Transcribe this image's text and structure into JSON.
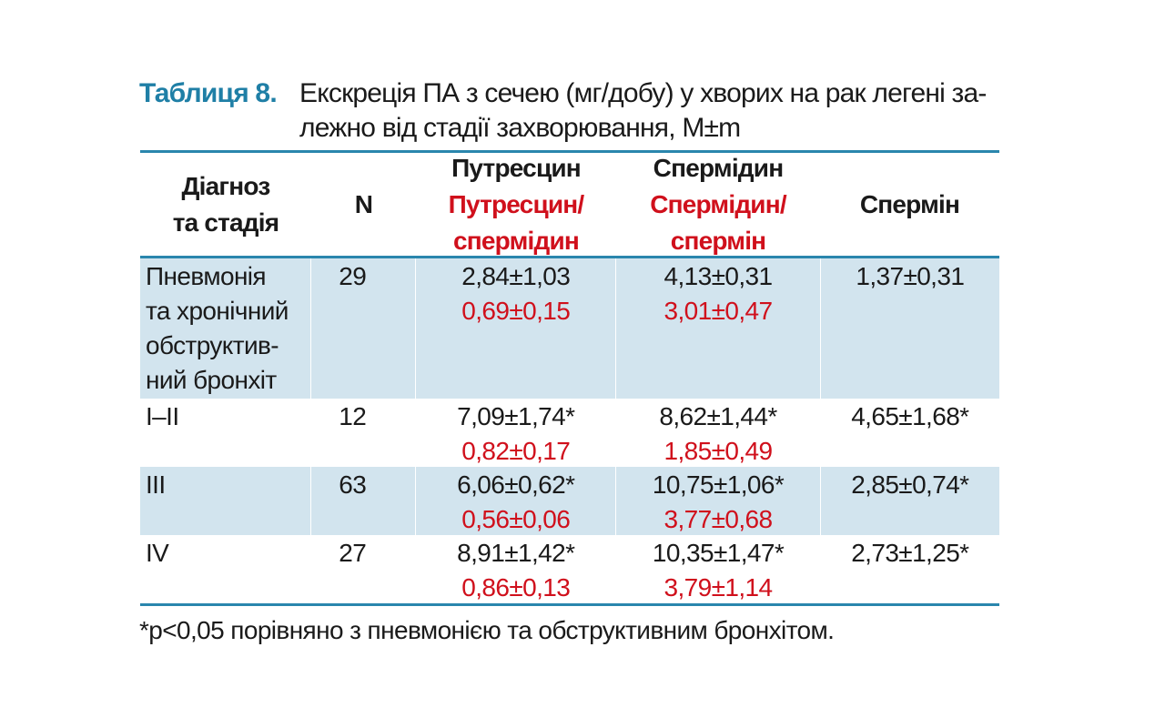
{
  "caption": {
    "label": "Таблиця 8.",
    "text": "Екскреція ПА з сечею (мг/добу) у хворих на рак легені за-\nлежно від стадії захворювання, M±m"
  },
  "table": {
    "headers": {
      "col1": "Діагноз\nта стадія",
      "col2": "N",
      "col3_main": "Путресцин",
      "col3_ratio": "Путресцин/\nспермідин",
      "col4_main": "Спермідин",
      "col4_ratio": "Спермідин/\nспермін",
      "col5": "Спермін"
    },
    "rows": [
      {
        "diagnosis": "Пневмонія\nта хронічний\nобструктив-\nний бронхіт",
        "n": "29",
        "putrescine": "2,84±1,03",
        "putrescine_ratio": "0,69±0,15",
        "spermidine": "4,13±0,31",
        "spermidine_ratio": "3,01±0,47",
        "spermine": "1,37±0,31"
      },
      {
        "diagnosis": "I–II",
        "n": "12",
        "putrescine": "7,09±1,74*",
        "putrescine_ratio": "0,82±0,17",
        "spermidine": "8,62±1,44*",
        "spermidine_ratio": "1,85±0,49",
        "spermine": "4,65±1,68*"
      },
      {
        "diagnosis": "III",
        "n": "63",
        "putrescine": "6,06±0,62*",
        "putrescine_ratio": "0,56±0,06",
        "spermidine": "10,75±1,06*",
        "spermidine_ratio": "3,77±0,68",
        "spermine": "2,85±0,74*"
      },
      {
        "diagnosis": "IV",
        "n": "27",
        "putrescine": "8,91±1,42*",
        "putrescine_ratio": "0,86±0,13",
        "spermidine": "10,35±1,47*",
        "spermidine_ratio": "3,79±1,14",
        "spermine": "2,73±1,25*"
      }
    ]
  },
  "footnote": "*p<0,05 порівняно з пневмонією та обструктивним бронхітом.",
  "colors": {
    "accent": "#1f7fa6",
    "rule": "#2a86ad",
    "ratio_text": "#d0101c",
    "row_shade": "#d2e4ee"
  }
}
